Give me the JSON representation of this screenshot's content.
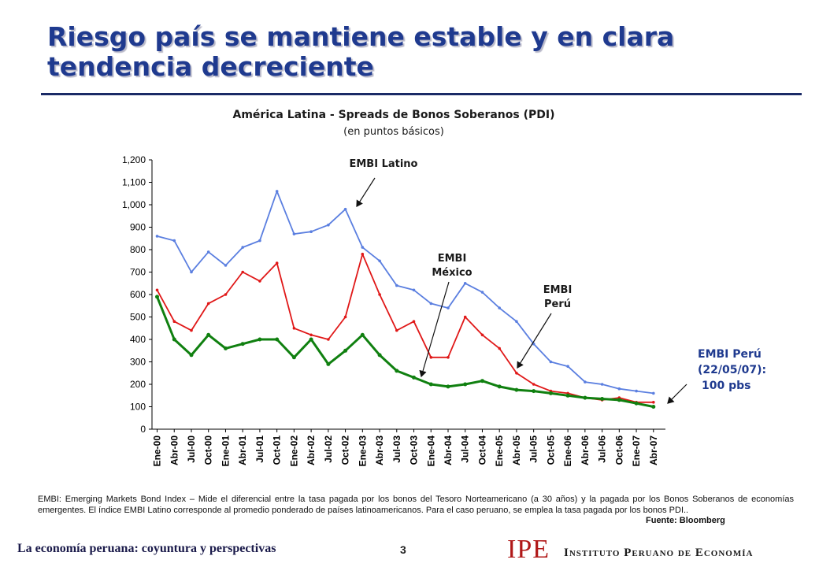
{
  "slide": {
    "title": "Riesgo país se mantiene estable y en clara tendencia decreciente",
    "footer_left": "La economía peruana: coyuntura y perspectivas",
    "page_number": "3",
    "logo_text": "IPE",
    "logo_name": "Instituto Peruano de Economía"
  },
  "colors": {
    "title": "#1f3a8f",
    "latino": "#5b7fe0",
    "mexico": "#e01818",
    "peru": "#108010",
    "logo": "#b01818"
  },
  "chart_data": {
    "type": "line",
    "title": "América Latina  - Spreads de Bonos Soberanos (PDI)",
    "subtitle": "(en puntos básicos)",
    "ylim": [
      0,
      1200
    ],
    "yticks": [
      "0",
      "100",
      "200",
      "300",
      "400",
      "500",
      "600",
      "700",
      "800",
      "900",
      "1,000",
      "1,100",
      "1,200"
    ],
    "x": [
      "Ene-00",
      "Abr-00",
      "Jul-00",
      "Oct-00",
      "Ene-01",
      "Abr-01",
      "Jul-01",
      "Oct-01",
      "Ene-02",
      "Abr-02",
      "Jul-02",
      "Oct-02",
      "Ene-03",
      "Abr-03",
      "Jul-03",
      "Oct-03",
      "Ene-04",
      "Abr-04",
      "Jul-04",
      "Oct-04",
      "Ene-05",
      "Abr-05",
      "Jul-05",
      "Oct-05",
      "Ene-06",
      "Abr-06",
      "Jul-06",
      "Oct-06",
      "Ene-07",
      "Abr-07"
    ],
    "series": [
      {
        "name": "EMBI Latino",
        "values": [
          860,
          840,
          700,
          790,
          730,
          810,
          840,
          1060,
          870,
          880,
          910,
          980,
          810,
          750,
          640,
          620,
          560,
          540,
          650,
          610,
          540,
          480,
          380,
          300,
          280,
          210,
          200,
          180,
          170,
          160
        ]
      },
      {
        "name": "EMBI México",
        "values": [
          620,
          480,
          440,
          560,
          600,
          700,
          660,
          740,
          450,
          420,
          400,
          500,
          780,
          600,
          440,
          480,
          320,
          320,
          500,
          420,
          360,
          250,
          200,
          170,
          160,
          140,
          130,
          140,
          120,
          120
        ]
      },
      {
        "name": "EMBI Perú",
        "values": [
          590,
          400,
          330,
          420,
          360,
          380,
          400,
          400,
          320,
          400,
          290,
          350,
          420,
          330,
          260,
          230,
          200,
          190,
          200,
          215,
          190,
          175,
          170,
          160,
          150,
          140,
          135,
          130,
          115,
          100
        ]
      }
    ],
    "annotations": {
      "latino": "EMBI Latino",
      "mexico_1": "EMBI",
      "mexico_2": "México",
      "peru_1": "EMBI",
      "peru_2": "Perú",
      "peru_last_1": "EMBI Perú",
      "peru_last_2": "(22/05/07):",
      "peru_last_3": "100 pbs"
    },
    "footnote": "EMBI: Emerging Markets Bond Index – Mide el diferencial entre la tasa pagada por los bonos del Tesoro Norteamericano (a 30 años) y la pagada por los Bonos Soberanos de economías emergentes. El índice EMBI Latino corresponde al promedio ponderado de países latinoamericanos. Para el caso peruano, se emplea la tasa pagada por los bonos PDI..",
    "source": "Fuente: Bloomberg"
  }
}
